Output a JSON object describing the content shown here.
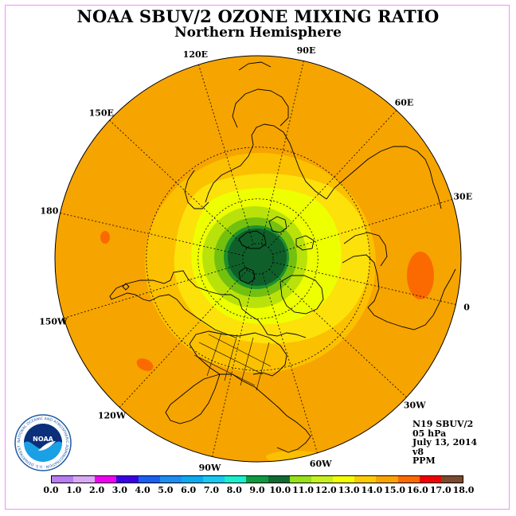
{
  "header": {
    "title": "NOAA SBUV/2 OZONE MIXING RATIO",
    "subtitle": "Northern Hemisphere"
  },
  "map": {
    "projection": "north-polar-stereographic",
    "longitude_labels": [
      "90E",
      "60E",
      "30E",
      "0",
      "30W",
      "60W",
      "90W",
      "120W",
      "150W",
      "180",
      "150E",
      "120E"
    ],
    "colors": {
      "outer": "#f6a400",
      "band_14": "#fbc000",
      "band_13": "#fde10a",
      "band_12": "#eeff00",
      "band_11": "#b9e20a",
      "band_10": "#74c00f",
      "band_9": "#1e8f2d",
      "core": "#0f5f2a",
      "high_spots": "#fa6a00"
    }
  },
  "info": {
    "lines": [
      "N19 SBUV/2",
      "05 hPa",
      "July 13, 2014",
      "v8",
      "PPM"
    ]
  },
  "colorbar": {
    "colors": [
      "#b87df0",
      "#d8aaf3",
      "#f000f0",
      "#3a00e6",
      "#1a5ff0",
      "#1e8cf0",
      "#0aaaf0",
      "#18c8f0",
      "#1aeecc",
      "#0f9940",
      "#0f6b33",
      "#98e01a",
      "#c6f01e",
      "#f4ff00",
      "#fbcc00",
      "#f7a300",
      "#fa6a00",
      "#f00000",
      "#7a4a2e"
    ],
    "ticks": [
      "0.0",
      "1.0",
      "2.0",
      "3.0",
      "4.0",
      "5.0",
      "6.0",
      "7.0",
      "8.0",
      "9.0",
      "10.0",
      "11.0",
      "12.0",
      "13.0",
      "14.0",
      "15.0",
      "16.0",
      "17.0",
      "18.0"
    ]
  },
  "logo": {
    "text": "NOAA",
    "ring_text": "NATIONAL OCEANIC AND ATMOSPHERIC ADMINISTRATION · U.S. DEPARTMENT OF COMMERCE"
  }
}
